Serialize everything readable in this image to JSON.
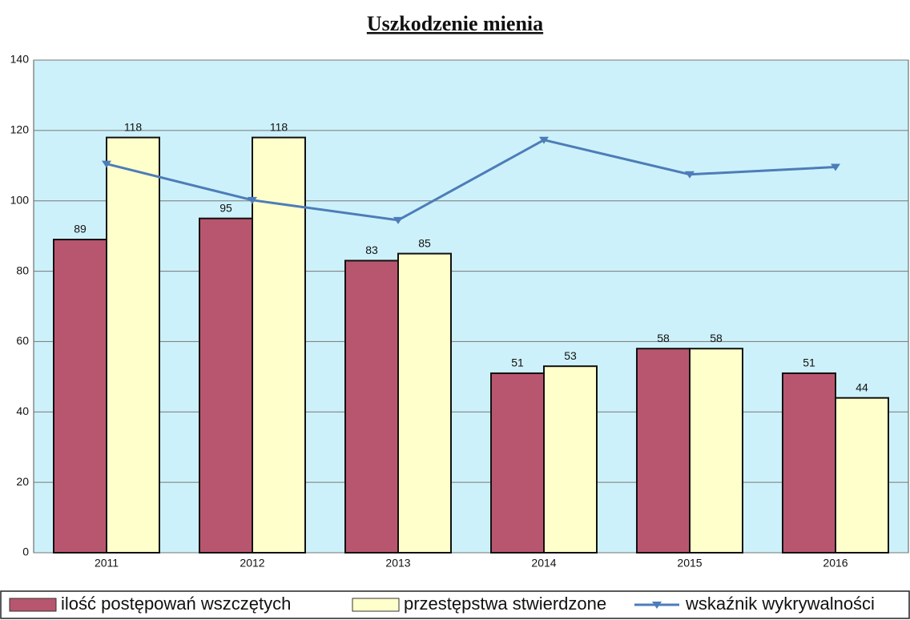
{
  "chart_data": {
    "type": "bar",
    "title": "Uszkodzenie mienia",
    "categories": [
      "2011",
      "2012",
      "2013",
      "2014",
      "2015",
      "2016"
    ],
    "series": [
      {
        "name": "ilość postępowań wszczętych",
        "color": "#b9566f",
        "values": [
          89,
          95,
          83,
          51,
          58,
          51
        ]
      },
      {
        "name": "przestępstwa stwierdzone",
        "color": "#ffffcc",
        "values": [
          118,
          118,
          85,
          53,
          58,
          44
        ]
      },
      {
        "name": "wskaźnik wykrywalności",
        "color": "#4d7db8",
        "type": "line",
        "values": [
          110.5,
          100.2,
          94.5,
          117.3,
          107.5,
          109.6
        ]
      }
    ],
    "ylim": [
      0,
      140
    ],
    "yticks": [
      0,
      20,
      40,
      60,
      80,
      100,
      120,
      140
    ],
    "grid": true,
    "plot_background": "#cdf1fa",
    "legend": "bottom"
  }
}
